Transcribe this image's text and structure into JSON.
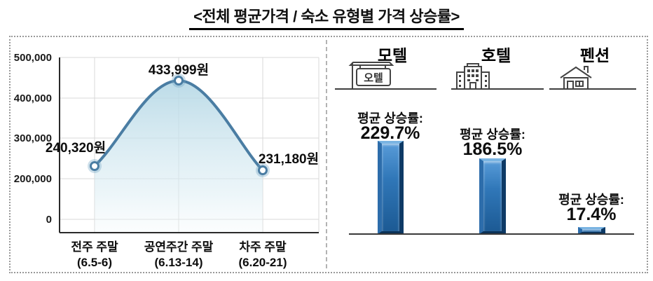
{
  "title": "<전체 평균가격 / 숙소 유형별 가격 상승률>",
  "colors": {
    "line": "#4a7da3",
    "area_fill": "#bcdbe8",
    "marker_ring": "#4a7da3",
    "grid": "#d8d8d8",
    "axis": "#2a2a2a",
    "bar_face": "#2e74b5",
    "bar_edge_dark": "#0e3a66",
    "bar_edge_light": "#7ab4e2",
    "frame_dotted": "#999999"
  },
  "chart_data": [
    {
      "type": "line",
      "title": "전체 평균가격",
      "categories": [
        "전주 주말 (6.5-6)",
        "공연주간 주말 (6.13-14)",
        "차주 주말 (6.20-21)"
      ],
      "values": [
        240320,
        433999,
        231180
      ],
      "value_labels": [
        "240,320원",
        "433,999원",
        "231,180원"
      ],
      "y_tick_labels": [
        "500,000",
        "400,000",
        "300,000",
        "200,000",
        "0"
      ],
      "ylim": [
        0,
        500000
      ],
      "xlabel": "",
      "ylabel": "",
      "grid": true,
      "legend": false,
      "style": "smooth line with area fill and circular markers"
    },
    {
      "type": "bar",
      "title": "숙소 유형별 가격 상승률",
      "categories": [
        "모텔",
        "호텔",
        "펜션"
      ],
      "values": [
        229.7,
        186.5,
        17.4
      ],
      "value_labels": [
        "평균 상승률: 229.7%",
        "평균 상승률: 186.5%",
        "평균 상승률: 17.4%"
      ],
      "unit": "%",
      "grid": false,
      "legend": false,
      "style": "glossy 3D blue bars with category icons above"
    }
  ],
  "line_chart": {
    "y_ticks": [
      "500,000",
      "400,000",
      "300,000",
      "200,000",
      "0"
    ],
    "points": [
      {
        "label": "전주 주말",
        "sublabel": "(6.5-6)",
        "value": 240320,
        "value_label": "240,320원"
      },
      {
        "label": "공연주간 주말",
        "sublabel": "(6.13-14)",
        "value": 433999,
        "value_label": "433,999원"
      },
      {
        "label": "차주 주말",
        "sublabel": "(6.20-21)",
        "value": 231180,
        "value_label": "231,180원"
      }
    ]
  },
  "bar_chart": {
    "columns": [
      {
        "name": "모텔",
        "icon": "motel-sign-icon",
        "sign_text": "오텔",
        "rate_label": "평균 상승률:",
        "rate_text": "229.7%",
        "value": 229.7
      },
      {
        "name": "호텔",
        "icon": "hotel-building-icon",
        "rate_label": "평균 상승률:",
        "rate_text": "186.5%",
        "value": 186.5
      },
      {
        "name": "펜션",
        "icon": "pension-house-icon",
        "rate_label": "평균 상승률:",
        "rate_text": "17.4%",
        "value": 17.4
      }
    ]
  }
}
